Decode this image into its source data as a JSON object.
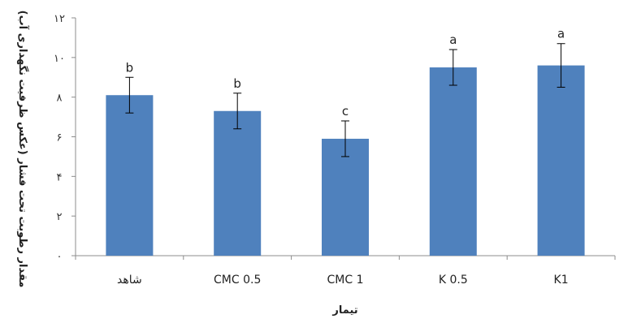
{
  "chart_data": {
    "type": "bar",
    "categories": [
      "شاهد",
      "CMC 0.5",
      "CMC 1",
      "K 0.5",
      "K1"
    ],
    "values": [
      8.1,
      7.3,
      5.9,
      9.5,
      9.6
    ],
    "errors": [
      0.9,
      0.9,
      0.9,
      0.9,
      1.1
    ],
    "labels": [
      "b",
      "b",
      "c",
      "a",
      "a"
    ],
    "xlabel": "تیمار",
    "ylabel": "مقدار رطوبت تحت فشار (عکس ظرفیت نگهداری آب)",
    "ylim": [
      0,
      12
    ],
    "yticks": [
      "۰",
      "۲",
      "۴",
      "۶",
      "۸",
      "۱۰",
      "۱۲"
    ],
    "bar_color": "#4f81bd",
    "grid": false
  }
}
